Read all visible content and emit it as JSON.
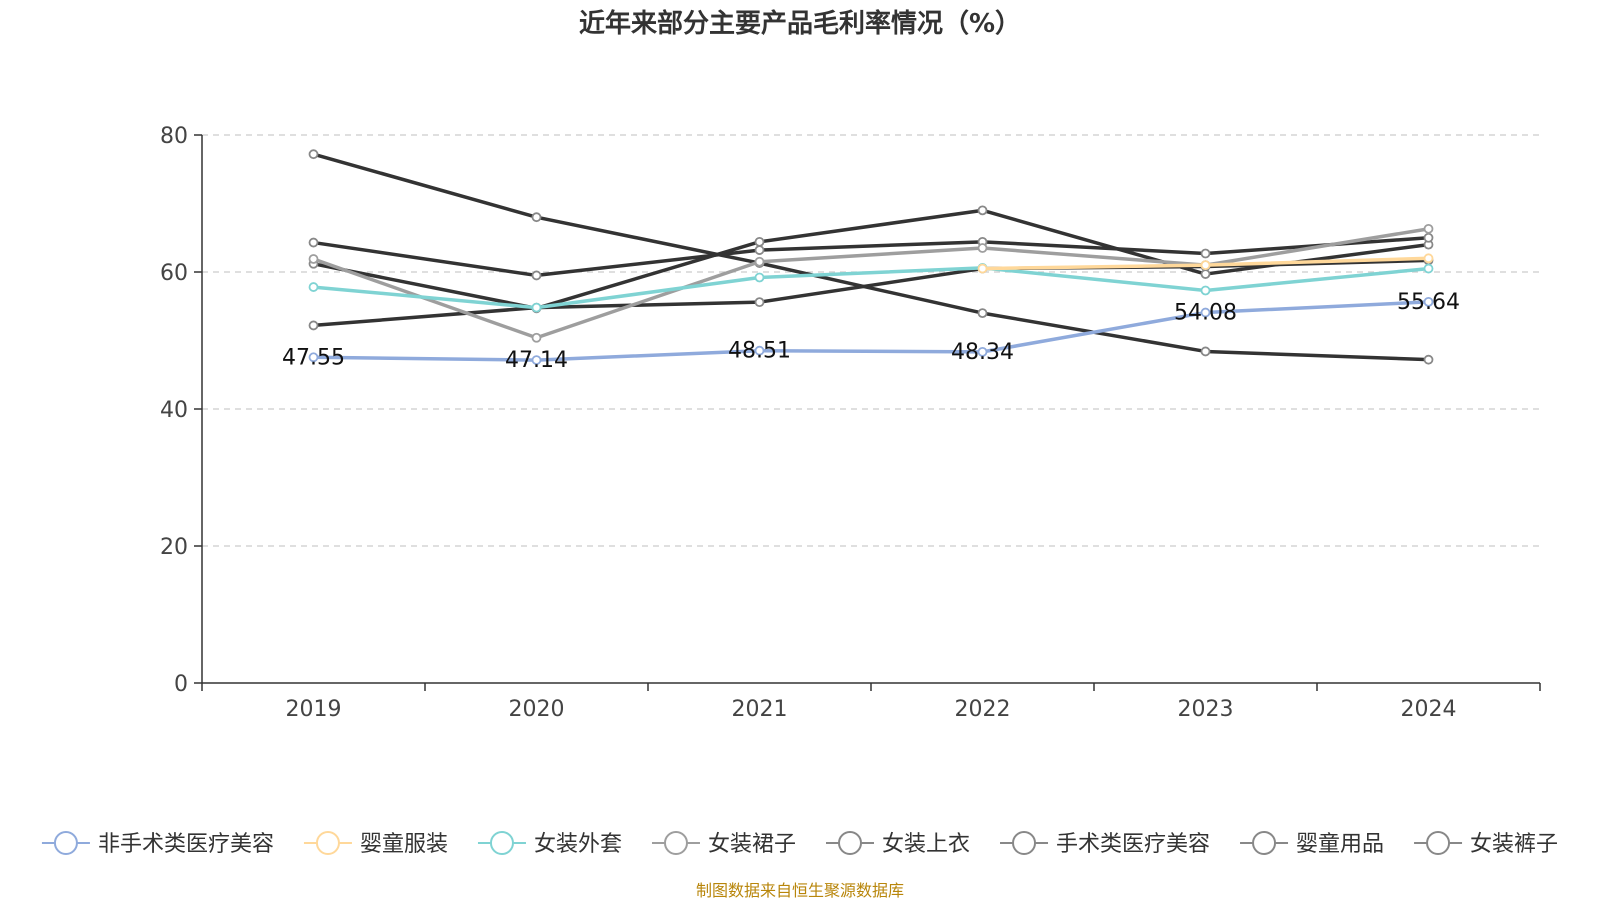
{
  "chart_data": {
    "type": "line",
    "title": "近年来部分主要产品毛利率情况（%）",
    "categories": [
      "2019",
      "2020",
      "2021",
      "2022",
      "2023",
      "2024"
    ],
    "ylim": [
      0,
      80
    ],
    "yticks": [
      0,
      20,
      40,
      60,
      80
    ],
    "grid": true,
    "legend_position": "bottom",
    "series": [
      {
        "name": "非手术类医疗美容",
        "color": "#8faadc",
        "values": [
          47.55,
          47.14,
          48.51,
          48.34,
          54.08,
          55.64
        ],
        "labels": [
          "47.55",
          "47.14",
          "48.51",
          "48.34",
          "54.08",
          "55.64"
        ]
      },
      {
        "name": "婴童服装",
        "color": "#ffd89a",
        "values": [
          null,
          null,
          null,
          60.5,
          61.0,
          62.0
        ]
      },
      {
        "name": "女装外套",
        "color": "#7fd3d3",
        "values": [
          57.8,
          54.8,
          59.2,
          60.6,
          57.3,
          60.5
        ]
      },
      {
        "name": "女装裙子",
        "color": "#9e9e9e",
        "values": [
          61.9,
          50.4,
          61.5,
          63.5,
          61.0,
          66.3
        ]
      },
      {
        "name": "女装上衣",
        "color": "#333333",
        "values": [
          64.3,
          59.5,
          63.2,
          64.4,
          62.7,
          65.0
        ]
      },
      {
        "name": "手术类医疗美容",
        "color": "#333333",
        "values": [
          77.2,
          68.0,
          61.3,
          54.0,
          48.4,
          47.2
        ]
      },
      {
        "name": "婴童用品",
        "color": "#333333",
        "values": [
          61.2,
          54.7,
          64.4,
          69.0,
          59.7,
          64.0
        ]
      },
      {
        "name": "女装裤子",
        "color": "#333333",
        "values": [
          52.2,
          54.8,
          55.6,
          60.5,
          60.8,
          61.7
        ]
      }
    ],
    "source": "制图数据来自恒生聚源数据库"
  }
}
